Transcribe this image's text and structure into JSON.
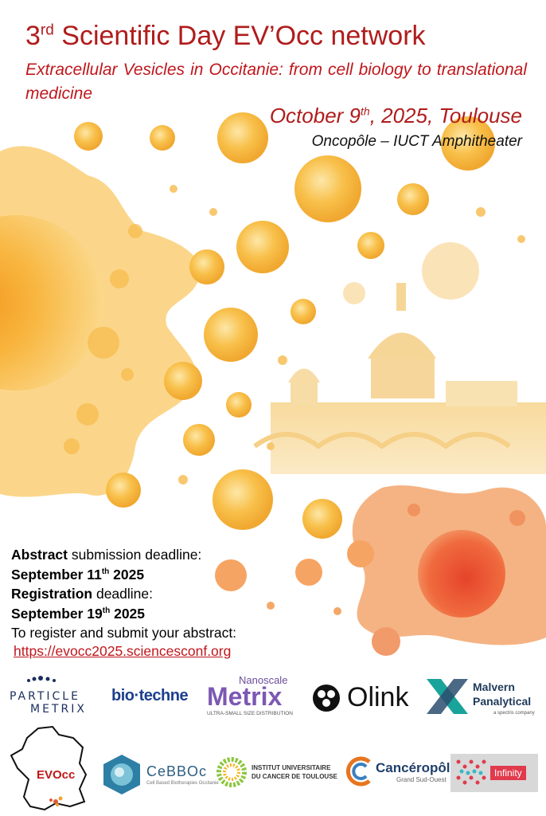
{
  "header": {
    "title_prefix": "3",
    "title_sup": "rd",
    "title_main": " Scientific Day EV’Occ network",
    "subtitle": "Extracellular Vesicles in Occitanie: from cell biology to translational medicine",
    "date_prefix": "October 9",
    "date_sup": "th",
    "date_rest": ", 2025, Toulouse",
    "venue": "Oncopôle – IUCT Amphitheater"
  },
  "deadlines": {
    "abstract_bold": "Abstract",
    "abstract_rest": " submission deadline:",
    "abstract_date_a": "September 11",
    "abstract_date_sup": "th",
    "abstract_date_b": " 2025",
    "registration_bold": "Registration",
    "registration_rest": " deadline:",
    "registration_date_a": "September 19",
    "registration_date_sup": "th",
    "registration_date_b": " 2025",
    "cta": "To register and submit your abstract:",
    "link": "https://evocc2025.sciencesconf.org"
  },
  "sponsors": {
    "particle_metrix_1": "PARTICLE",
    "particle_metrix_2": "METRIX",
    "biotechne": "bio·techne",
    "nanoscale": "Nanoscale",
    "metrix": "Metrix",
    "metrix_tagline": "ULTRA-SMALL SIZE DISTRIBUTION",
    "olink": "Olink",
    "malvern_1": "Malvern",
    "malvern_2": "Panalytical",
    "malvern_tag": "a spectris company"
  },
  "partners": {
    "evocc": "EVOcc",
    "cebboc": "CeBBOc",
    "cebboc_tag": "Cell Based Biotherapies Occitanie",
    "iuct_1": "INSTITUT UNIVERSITAIRE",
    "iuct_2": "DU CANCER DE TOULOUSE",
    "canceropole": "Cancéropôle",
    "canceropole_tag": "Grand Sud-Ouest",
    "infinity": "Infinity"
  },
  "colors": {
    "accent_red": "#b01c1c",
    "orange": "#f5a623",
    "red_orange": "#e8553a"
  }
}
